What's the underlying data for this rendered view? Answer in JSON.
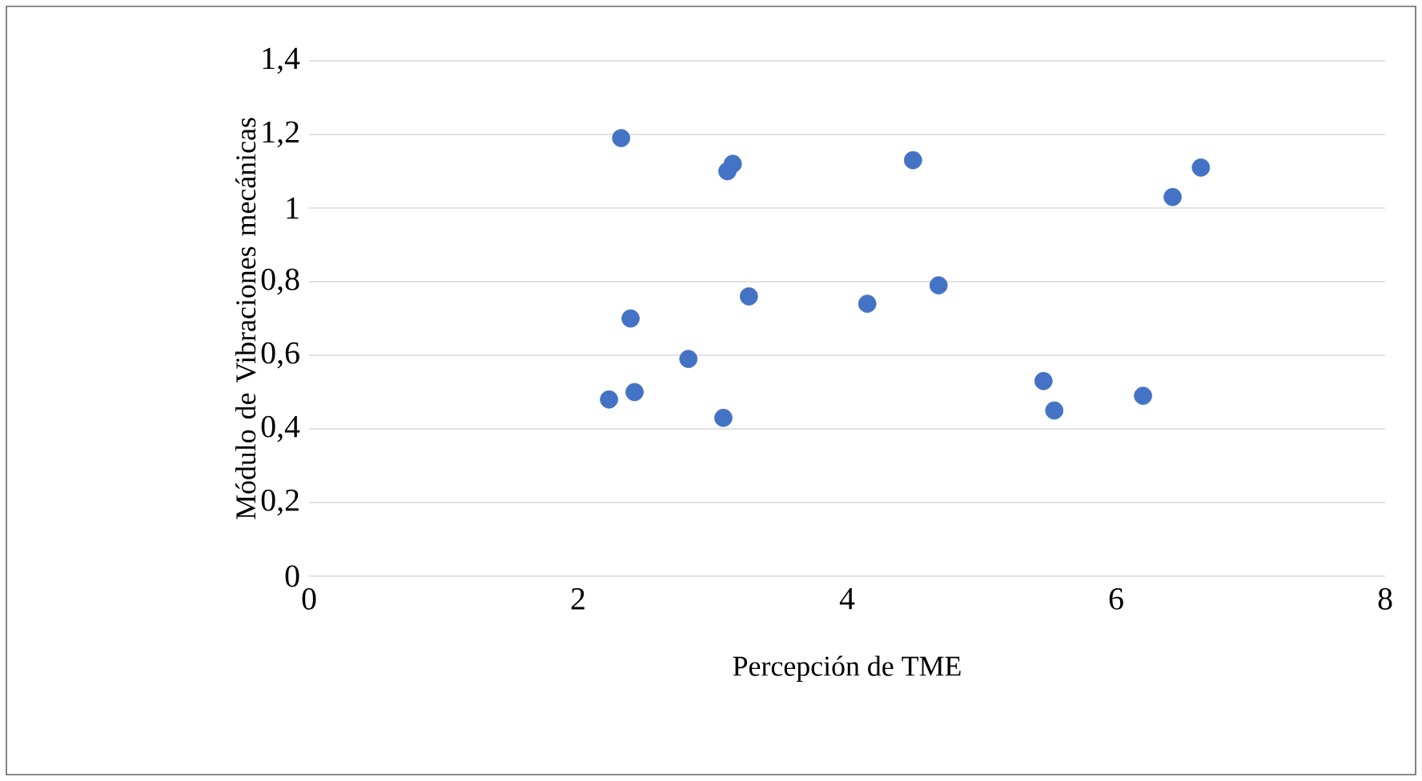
{
  "chart_data": {
    "type": "scatter",
    "xlabel": "Percepción de TME",
    "ylabel": "Módulo de Vibraciones mecánicas",
    "color": "#4472c4",
    "marker": "circle",
    "grid": "y",
    "x": [
      2.32,
      3.15,
      3.11,
      4.49,
      6.63,
      6.42,
      2.39,
      3.27,
      4.15,
      4.68,
      2.82,
      2.23,
      2.42,
      3.08,
      5.46,
      5.54,
      6.2
    ],
    "values": [
      1.19,
      1.12,
      1.1,
      1.13,
      1.11,
      1.03,
      0.7,
      0.76,
      0.74,
      0.79,
      0.59,
      0.48,
      0.5,
      0.43,
      0.53,
      0.45,
      0.49
    ],
    "xlim": [
      0,
      8
    ],
    "xticks": [
      0,
      2,
      4,
      6,
      8
    ],
    "ylim": [
      0,
      1.4
    ],
    "yticks": [
      0,
      {
        "value": 0.2,
        "label": "0,2"
      },
      {
        "value": 0.4,
        "label": "0,4"
      },
      {
        "value": 0.6,
        "label": "0,6"
      },
      {
        "value": 0.8,
        "label": "0,8"
      },
      1,
      {
        "value": 1.2,
        "label": "1,2"
      },
      {
        "value": 1.4,
        "label": "1,4"
      }
    ]
  }
}
